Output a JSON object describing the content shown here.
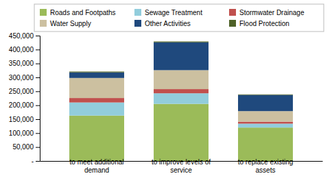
{
  "chart_data": {
    "type": "bar",
    "stacked": true,
    "categories": [
      "to meet additional\ndemand",
      "to improve levels of\nservice",
      "to replace existing\nassets"
    ],
    "series": [
      {
        "name": "Roads and Footpaths",
        "color": "#9BBB59",
        "values": [
          163000,
          205000,
          120000
        ]
      },
      {
        "name": "Sewage Treatment",
        "color": "#92CDDC",
        "values": [
          47000,
          38000,
          14000
        ]
      },
      {
        "name": "Stormwater Drainage",
        "color": "#C0504D",
        "values": [
          16000,
          15000,
          7000
        ]
      },
      {
        "name": "Water Supply",
        "color": "#CCC0A0",
        "values": [
          72000,
          68000,
          38000
        ]
      },
      {
        "name": "Other Activities",
        "color": "#1F497D",
        "values": [
          20000,
          100000,
          58000
        ]
      },
      {
        "name": "Flood Protection",
        "color": "#4F6228",
        "values": [
          3000,
          3000,
          2000
        ]
      }
    ],
    "ylim": [
      0,
      450000
    ],
    "yticks": [
      {
        "value": 0,
        "label": "-"
      },
      {
        "value": 50000,
        "label": "50,000"
      },
      {
        "value": 100000,
        "label": "100,000"
      },
      {
        "value": 150000,
        "label": "150,000"
      },
      {
        "value": 200000,
        "label": "200,000"
      },
      {
        "value": 250000,
        "label": "250,000"
      },
      {
        "value": 300000,
        "label": "300,000"
      },
      {
        "value": 350000,
        "label": "350,000"
      },
      {
        "value": 400000,
        "label": "400,000"
      },
      {
        "value": 450000,
        "label": "450,000"
      }
    ],
    "grid": false,
    "legend": "top"
  }
}
